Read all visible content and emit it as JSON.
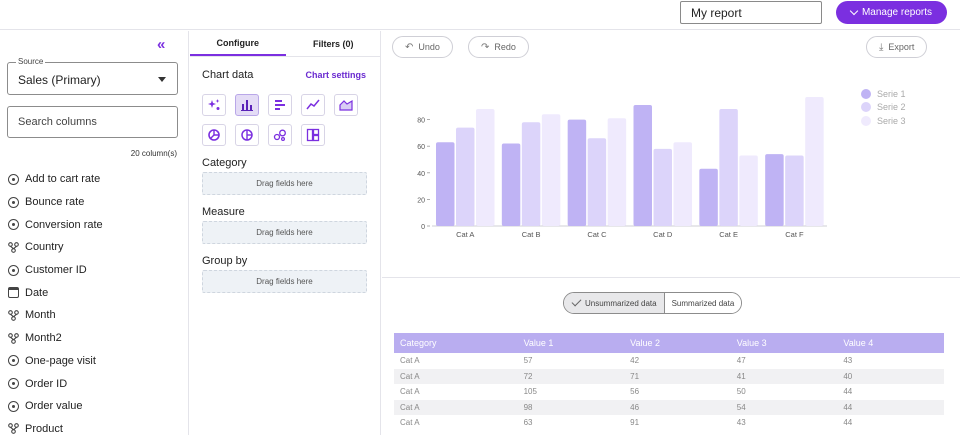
{
  "topbar": {
    "report_name": "My report",
    "manage_label": "Manage reports"
  },
  "sidebar": {
    "source_legend": "Source",
    "source_value": "Sales (Primary)",
    "search_placeholder": "Search columns",
    "column_count": "20 column(s)",
    "fields": [
      {
        "label": "Add to cart rate",
        "icon": "measure-icon"
      },
      {
        "label": "Bounce rate",
        "icon": "measure-icon"
      },
      {
        "label": "Conversion rate",
        "icon": "measure-icon"
      },
      {
        "label": "Country",
        "icon": "dimension-icon"
      },
      {
        "label": "Customer ID",
        "icon": "measure-icon"
      },
      {
        "label": "Date",
        "icon": "calendar-icon"
      },
      {
        "label": "Month",
        "icon": "dimension-icon"
      },
      {
        "label": "Month2",
        "icon": "dimension-icon"
      },
      {
        "label": "One-page visit",
        "icon": "measure-icon"
      },
      {
        "label": "Order ID",
        "icon": "measure-icon"
      },
      {
        "label": "Order value",
        "icon": "measure-icon"
      },
      {
        "label": "Product",
        "icon": "dimension-icon"
      }
    ]
  },
  "config": {
    "tab_configure": "Configure",
    "tab_filters": "Filters (0)",
    "chart_data_title": "Chart data",
    "chart_settings_label": "Chart settings",
    "category_title": "Category",
    "measure_title": "Measure",
    "group_title": "Group by",
    "drop_hint": "Drag fields here"
  },
  "actions": {
    "undo": "Undo",
    "redo": "Redo",
    "export": "Export"
  },
  "toggle": {
    "unsummarized": "Unsummarized data",
    "summarized": "Summarized data"
  },
  "colors": {
    "accent": "#7b2fe0",
    "serie1": "#bfb3f4",
    "serie2": "#dcd4fa",
    "serie3": "#efeafd"
  },
  "chart_data": {
    "type": "bar",
    "categories": [
      "Cat A",
      "Cat B",
      "Cat C",
      "Cat D",
      "Cat E",
      "Cat F"
    ],
    "series": [
      {
        "name": "Serie 1",
        "values": [
          63,
          62,
          80,
          91,
          43,
          54
        ]
      },
      {
        "name": "Serie 2",
        "values": [
          74,
          78,
          66,
          58,
          88,
          53
        ]
      },
      {
        "name": "Serie 3",
        "values": [
          88,
          84,
          81,
          63,
          53,
          97
        ]
      }
    ],
    "ylim": [
      0,
      100
    ],
    "yticks": [
      0,
      20,
      40,
      60,
      80
    ],
    "legend_position": "top-right",
    "grid": false
  },
  "table": {
    "headers": [
      "Category",
      "Value 1",
      "Value 2",
      "Value 3",
      "Value 4"
    ],
    "rows": [
      [
        "Cat A",
        "57",
        "42",
        "47",
        "43"
      ],
      [
        "Cat A",
        "72",
        "71",
        "41",
        "40"
      ],
      [
        "Cat A",
        "105",
        "56",
        "50",
        "44"
      ],
      [
        "Cat A",
        "98",
        "46",
        "54",
        "44"
      ],
      [
        "Cat A",
        "63",
        "91",
        "43",
        "44"
      ]
    ]
  }
}
